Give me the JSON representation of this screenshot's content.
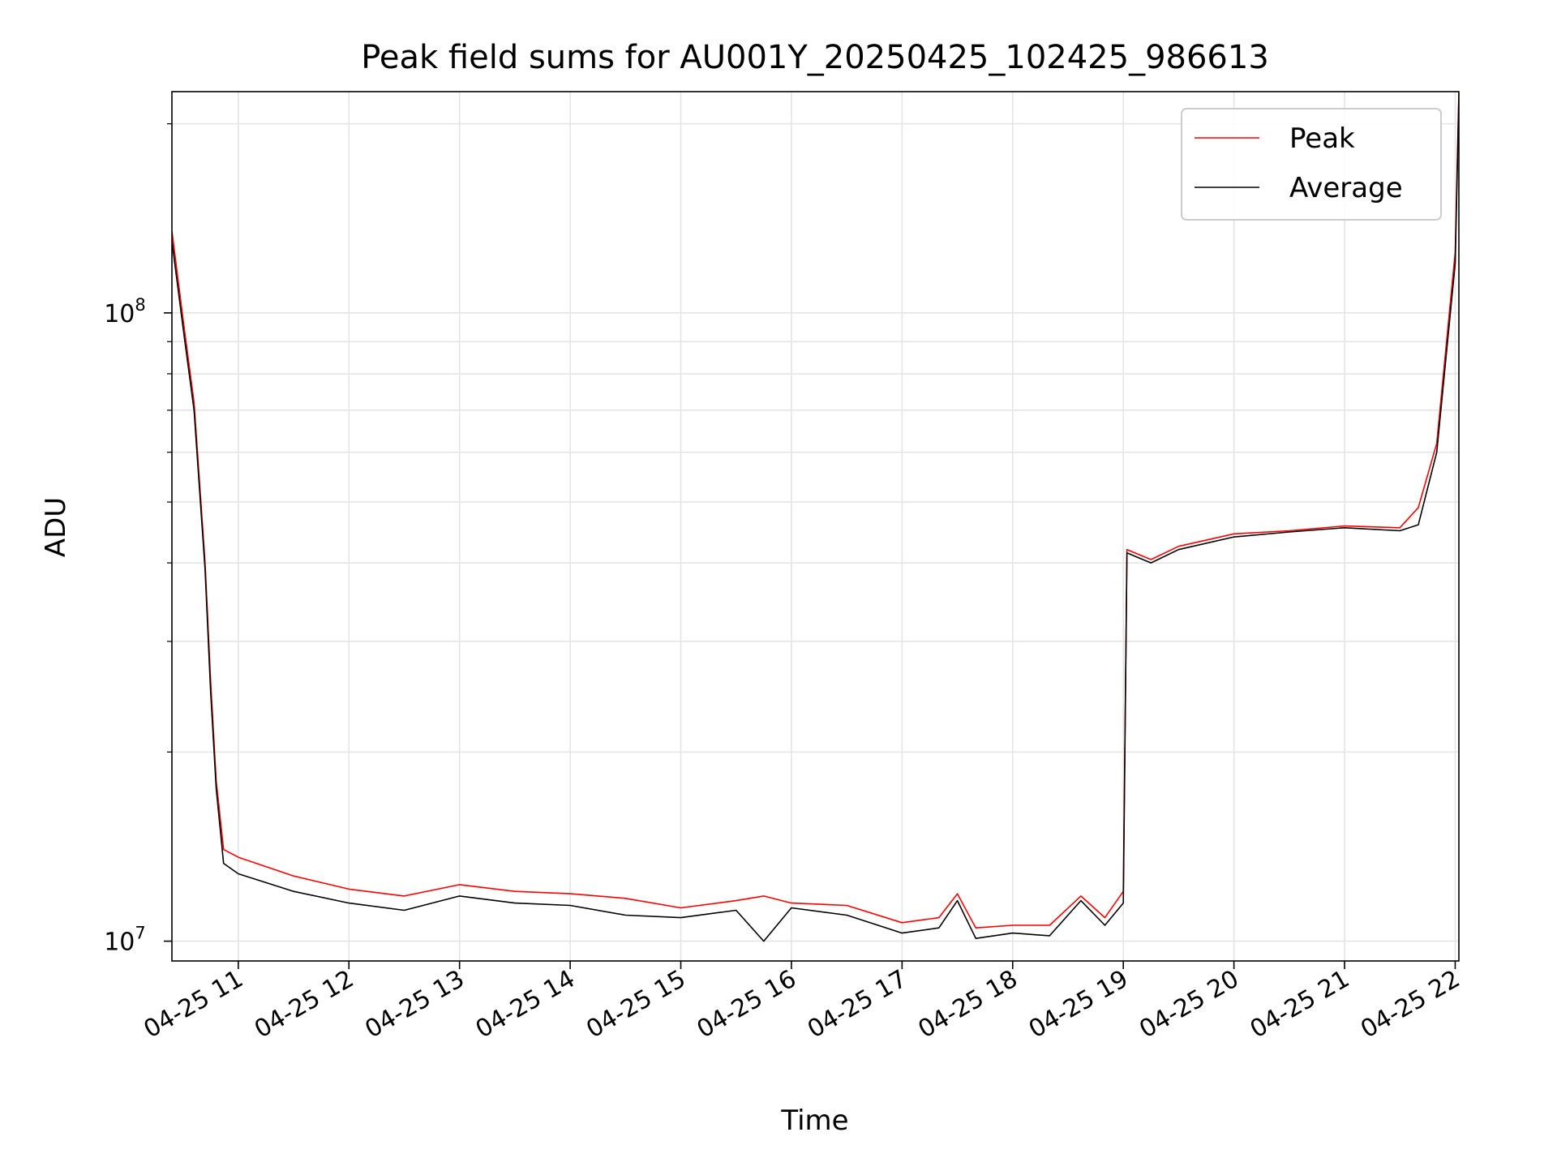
{
  "chart_data": {
    "type": "line",
    "title": "Peak field sums for AU001Y_20250425_102425_986613",
    "xlabel": "Time",
    "ylabel": "ADU",
    "y_scale": "log",
    "ylim": [
      9300000,
      225000000
    ],
    "xlim": [
      "2025-04-25T10:24",
      "2025-04-25T22:02"
    ],
    "grid": true,
    "legend_position": "top-right",
    "x_ticks": [
      {
        "value": "2025-04-25T11:00",
        "label": "04-25 11"
      },
      {
        "value": "2025-04-25T12:00",
        "label": "04-25 12"
      },
      {
        "value": "2025-04-25T13:00",
        "label": "04-25 13"
      },
      {
        "value": "2025-04-25T14:00",
        "label": "04-25 14"
      },
      {
        "value": "2025-04-25T15:00",
        "label": "04-25 15"
      },
      {
        "value": "2025-04-25T16:00",
        "label": "04-25 16"
      },
      {
        "value": "2025-04-25T17:00",
        "label": "04-25 17"
      },
      {
        "value": "2025-04-25T18:00",
        "label": "04-25 18"
      },
      {
        "value": "2025-04-25T19:00",
        "label": "04-25 19"
      },
      {
        "value": "2025-04-25T20:00",
        "label": "04-25 20"
      },
      {
        "value": "2025-04-25T21:00",
        "label": "04-25 21"
      },
      {
        "value": "2025-04-25T22:00",
        "label": "04-25 22"
      }
    ],
    "y_major_ticks": [
      {
        "value": 10000000,
        "base": "10",
        "exponent": "7"
      },
      {
        "value": 100000000,
        "base": "10",
        "exponent": "8"
      }
    ],
    "series": [
      {
        "name": "Peak",
        "color": "#ff0000",
        "x": [
          "2025-04-25T10:24",
          "2025-04-25T10:30",
          "2025-04-25T10:36",
          "2025-04-25T10:42",
          "2025-04-25T10:45",
          "2025-04-25T10:48",
          "2025-04-25T10:52",
          "2025-04-25T11:00",
          "2025-04-25T11:30",
          "2025-04-25T12:00",
          "2025-04-25T12:30",
          "2025-04-25T13:00",
          "2025-04-25T13:30",
          "2025-04-25T14:00",
          "2025-04-25T14:30",
          "2025-04-25T15:00",
          "2025-04-25T15:30",
          "2025-04-25T15:45",
          "2025-04-25T16:00",
          "2025-04-25T16:30",
          "2025-04-25T17:00",
          "2025-04-25T17:20",
          "2025-04-25T17:30",
          "2025-04-25T17:40",
          "2025-04-25T18:00",
          "2025-04-25T18:20",
          "2025-04-25T18:37",
          "2025-04-25T18:50",
          "2025-04-25T19:00",
          "2025-04-25T19:02",
          "2025-04-25T19:15",
          "2025-04-25T19:30",
          "2025-04-25T20:00",
          "2025-04-25T20:30",
          "2025-04-25T21:00",
          "2025-04-25T21:30",
          "2025-04-25T21:40",
          "2025-04-25T21:50",
          "2025-04-25T22:00",
          "2025-04-25T22:02"
        ],
        "values": [
          135000000,
          98000000,
          72000000,
          40000000,
          26000000,
          18000000,
          14000000,
          13600000,
          12700000,
          12100000,
          11800000,
          12300000,
          12000000,
          11900000,
          11700000,
          11300000,
          11600000,
          11800000,
          11500000,
          11400000,
          10700000,
          10900000,
          11900000,
          10500000,
          10600000,
          10600000,
          11800000,
          10900000,
          12000000,
          42000000,
          40500000,
          42500000,
          44500000,
          45000000,
          45800000,
          45500000,
          49000000,
          62000000,
          125000000,
          225000000
        ]
      },
      {
        "name": "Average",
        "color": "#000000",
        "x": [
          "2025-04-25T10:24",
          "2025-04-25T10:30",
          "2025-04-25T10:36",
          "2025-04-25T10:42",
          "2025-04-25T10:45",
          "2025-04-25T10:48",
          "2025-04-25T10:52",
          "2025-04-25T11:00",
          "2025-04-25T11:30",
          "2025-04-25T12:00",
          "2025-04-25T12:30",
          "2025-04-25T13:00",
          "2025-04-25T13:30",
          "2025-04-25T14:00",
          "2025-04-25T14:30",
          "2025-04-25T15:00",
          "2025-04-25T15:30",
          "2025-04-25T15:45",
          "2025-04-25T16:00",
          "2025-04-25T16:30",
          "2025-04-25T17:00",
          "2025-04-25T17:20",
          "2025-04-25T17:30",
          "2025-04-25T17:40",
          "2025-04-25T18:00",
          "2025-04-25T18:20",
          "2025-04-25T18:37",
          "2025-04-25T18:50",
          "2025-04-25T19:00",
          "2025-04-25T19:02",
          "2025-04-25T19:15",
          "2025-04-25T19:30",
          "2025-04-25T20:00",
          "2025-04-25T20:30",
          "2025-04-25T21:00",
          "2025-04-25T21:30",
          "2025-04-25T21:40",
          "2025-04-25T21:50",
          "2025-04-25T22:00",
          "2025-04-25T22:02"
        ],
        "values": [
          130000000,
          95000000,
          70000000,
          39000000,
          25000000,
          17500000,
          13300000,
          12800000,
          12000000,
          11500000,
          11200000,
          11800000,
          11500000,
          11400000,
          11000000,
          10900000,
          11200000,
          10000000,
          11300000,
          11000000,
          10300000,
          10500000,
          11600000,
          10100000,
          10300000,
          10200000,
          11600000,
          10600000,
          11500000,
          41500000,
          40000000,
          42000000,
          44000000,
          44800000,
          45500000,
          45000000,
          46000000,
          60000000,
          120000000,
          220000000
        ]
      }
    ]
  }
}
